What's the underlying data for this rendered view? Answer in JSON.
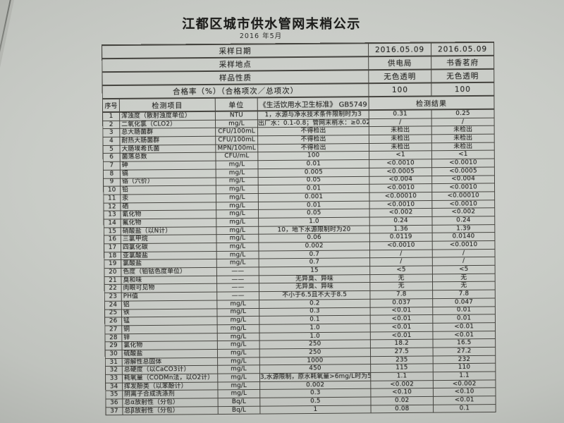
{
  "title": "江都区城市供水管网末梢公示",
  "subtitle": "2016 年5月",
  "colors": {
    "paper": "#c9ccc7",
    "ink": "#232321",
    "grid_line": "#45443f"
  },
  "info_rows": [
    {
      "label": "采样日期",
      "v1": "2016.05.09",
      "v2": "2016.05.09"
    },
    {
      "label": "采样地点",
      "v1": "供电局",
      "v2": "书香茗府"
    },
    {
      "label": "样品性质",
      "v1": "无色透明",
      "v2": "无色透明"
    },
    {
      "label": "合格率（%）（合格项次／总项次）",
      "v1": "100",
      "v2": "100"
    }
  ],
  "columns": {
    "no": "序号",
    "item": "检测项目",
    "unit": "单位",
    "standard": "《生活饮用水卫生标准》 GB5749",
    "result": "检测结果"
  },
  "rows": [
    {
      "no": "1",
      "item": "浑浊度（散射浊度单位）",
      "unit": "NTU",
      "standard": "1，水源与净水技术条件限制时为3",
      "r1": "0.31",
      "r2": "0.25"
    },
    {
      "no": "2",
      "item": "二氧化氯（CLO2）",
      "unit": "mg/L",
      "standard": "出厂水：0.1-0.8；管网末梢水：≥0.02",
      "r1": "/",
      "r2": "/"
    },
    {
      "no": "3",
      "item": "总大肠菌群",
      "unit": "CFU/100mL",
      "standard": "不得检出",
      "r1": "未检出",
      "r2": "未检出"
    },
    {
      "no": "4",
      "item": "耐热大肠菌群",
      "unit": "CFU/100mL",
      "standard": "不得检出",
      "r1": "未检出",
      "r2": "未检出"
    },
    {
      "no": "5",
      "item": "大肠埃希氏菌",
      "unit": "MPN/100mL",
      "standard": "不得检出",
      "r1": "未检出",
      "r2": "未检出"
    },
    {
      "no": "6",
      "item": "菌落总数",
      "unit": "CFU/mL",
      "standard": "100",
      "r1": "<1",
      "r2": "<1"
    },
    {
      "no": "7",
      "item": "砷",
      "unit": "mg/L",
      "standard": "0.01",
      "r1": "<0.0010",
      "r2": "<0.0010"
    },
    {
      "no": "8",
      "item": "镉",
      "unit": "mg/L",
      "standard": "0.005",
      "r1": "<0.0005",
      "r2": "<0.0005"
    },
    {
      "no": "9",
      "item": "铬（六价）",
      "unit": "mg/L",
      "standard": "0.05",
      "r1": "<0.004",
      "r2": "<0.004"
    },
    {
      "no": "10",
      "item": "铅",
      "unit": "mg/L",
      "standard": "0.01",
      "r1": "<0.0010",
      "r2": "<0.0010"
    },
    {
      "no": "11",
      "item": "汞",
      "unit": "mg/L",
      "standard": "0.001",
      "r1": "<0.00010",
      "r2": "<0.00010"
    },
    {
      "no": "12",
      "item": "硒",
      "unit": "mg/L",
      "standard": "0.01",
      "r1": "<0.0010",
      "r2": "<0.0010"
    },
    {
      "no": "13",
      "item": "氰化物",
      "unit": "mg/L",
      "standard": "0.05",
      "r1": "<0.002",
      "r2": "<0.002"
    },
    {
      "no": "14",
      "item": "氟化物",
      "unit": "mg/L",
      "standard": "1.0",
      "r1": "0.24",
      "r2": "0.24"
    },
    {
      "no": "15",
      "item": "硝酸盐（以N计）",
      "unit": "mg/L",
      "standard": "10，地下水源限制时为20",
      "r1": "1.36",
      "r2": "1.39"
    },
    {
      "no": "16",
      "item": "三氯甲烷",
      "unit": "mg/L",
      "standard": "0.06",
      "r1": "0.0119",
      "r2": "0.0140"
    },
    {
      "no": "17",
      "item": "四氯化碳",
      "unit": "mg/L",
      "standard": "0.002",
      "r1": "<0.0010",
      "r2": "<0.0010"
    },
    {
      "no": "18",
      "item": "亚氯酸盐",
      "unit": "mg/L",
      "standard": "0.7",
      "r1": "/",
      "r2": "/"
    },
    {
      "no": "19",
      "item": "氯酸盐",
      "unit": "mg/L",
      "standard": "0.7",
      "r1": "/",
      "r2": "/"
    },
    {
      "no": "20",
      "item": "色度（铂钴色度单位）",
      "unit": "——",
      "standard": "15",
      "r1": "<5",
      "r2": "<5"
    },
    {
      "no": "21",
      "item": "臭和味",
      "unit": "——",
      "standard": "无异臭、异味",
      "r1": "无",
      "r2": "无"
    },
    {
      "no": "22",
      "item": "肉眼可见物",
      "unit": "——",
      "standard": "无异臭、异味",
      "r1": "无",
      "r2": "无"
    },
    {
      "no": "23",
      "item": "PH值",
      "unit": "——",
      "standard": "不小于6.5且不大于8.5",
      "r1": "7.8",
      "r2": "7.8"
    },
    {
      "no": "24",
      "item": "铝",
      "unit": "mg/L",
      "standard": "0.2",
      "r1": "0.037",
      "r2": "0.047"
    },
    {
      "no": "25",
      "item": "铁",
      "unit": "mg/L",
      "standard": "0.3",
      "r1": "<0.01",
      "r2": "0.01"
    },
    {
      "no": "26",
      "item": "锰",
      "unit": "mg/L",
      "standard": "0.1",
      "r1": "<0.01",
      "r2": "0.01"
    },
    {
      "no": "27",
      "item": "铜",
      "unit": "mg/L",
      "standard": "1.0",
      "r1": "<0.01",
      "r2": "<0.01"
    },
    {
      "no": "28",
      "item": "锌",
      "unit": "mg/L",
      "standard": "1.0",
      "r1": "<0.01",
      "r2": "<0.01"
    },
    {
      "no": "29",
      "item": "氯化物",
      "unit": "mg/L",
      "standard": "250",
      "r1": "18.2",
      "r2": "16.5"
    },
    {
      "no": "30",
      "item": "硫酸盐",
      "unit": "mg/L",
      "standard": "250",
      "r1": "27.5",
      "r2": "27.2"
    },
    {
      "no": "31",
      "item": "溶解性总固体",
      "unit": "mg/L",
      "standard": "1000",
      "r1": "235",
      "r2": "232"
    },
    {
      "no": "32",
      "item": "总硬度（以CaCO3计）",
      "unit": "mg/L",
      "standard": "450",
      "r1": "115",
      "r2": "110"
    },
    {
      "no": "33",
      "item": "耗氧量（CODMn法，以O2计）",
      "unit": "mg/L",
      "standard": "3,水源限制，原水耗氧量>6mg/L时为5",
      "r1": "1.1",
      "r2": "1.1"
    },
    {
      "no": "34",
      "item": "挥发酚类（以苯酚计）",
      "unit": "mg/L",
      "standard": "0.002",
      "r1": "<0.002",
      "r2": "<0.002"
    },
    {
      "no": "35",
      "item": "阴离子合成洗涤剂",
      "unit": "mg/L",
      "standard": "0.3",
      "r1": "<0.10",
      "r2": "<0.10"
    },
    {
      "no": "36",
      "item": "总α放射性（分包）",
      "unit": "Bq/L",
      "standard": "0.5",
      "r1": "0.02",
      "r2": "<0.01"
    },
    {
      "no": "37",
      "item": "总β放射性（分包）",
      "unit": "Bq/L",
      "standard": "1",
      "r1": "0.08",
      "r2": "0.1"
    }
  ]
}
